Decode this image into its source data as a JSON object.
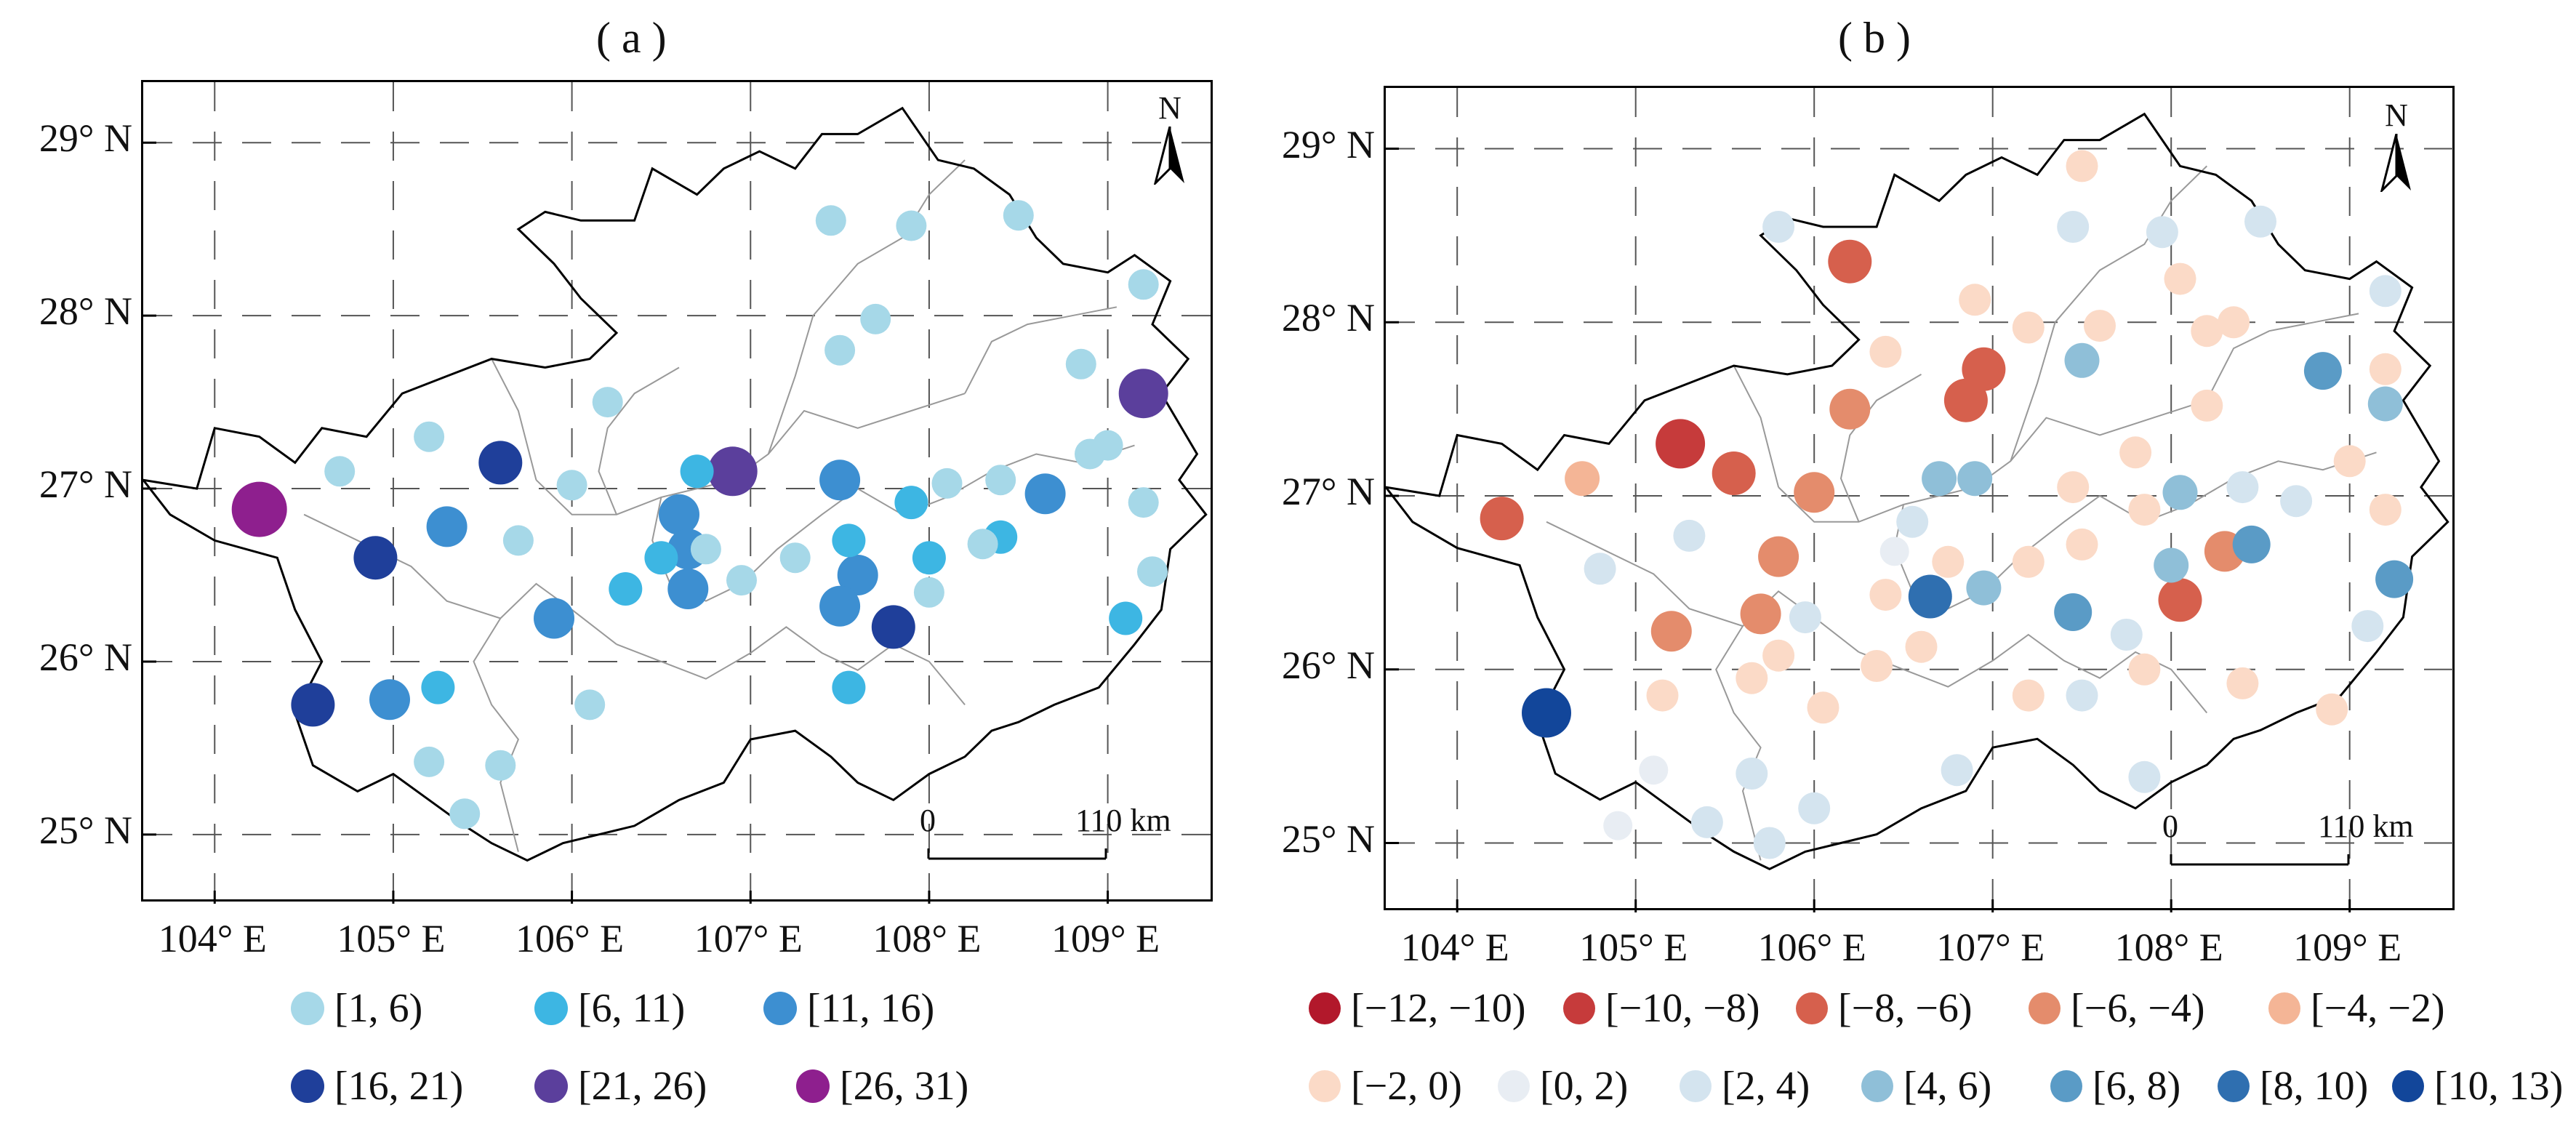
{
  "panel_a": {
    "title": "( a )",
    "north_label": "N",
    "scale_zero": "0",
    "scale_label": "110 km",
    "lat_labels": [
      "29° N",
      "28° N",
      "27° N",
      "26° N",
      "25° N"
    ],
    "lon_labels": [
      "104° E",
      "105° E",
      "106° E",
      "107° E",
      "108° E",
      "109° E"
    ],
    "legend": [
      {
        "label": "[1, 6)",
        "color": "#a6d8e8"
      },
      {
        "label": "[6, 11)",
        "color": "#3db6e3"
      },
      {
        "label": "[11, 16)",
        "color": "#3d8fd1"
      },
      {
        "label": "[16, 21)",
        "color": "#1f3f9a"
      },
      {
        "label": "[21, 26)",
        "color": "#5b3f9c"
      },
      {
        "label": "[26, 31)",
        "color": "#8e1f8e"
      }
    ]
  },
  "panel_b": {
    "title": "( b )",
    "north_label": "N",
    "scale_zero": "0",
    "scale_label": "110 km",
    "lat_labels": [
      "29° N",
      "28° N",
      "27° N",
      "26° N",
      "25° N"
    ],
    "lon_labels": [
      "104° E",
      "105° E",
      "106° E",
      "107° E",
      "108° E",
      "109° E"
    ],
    "legend": [
      {
        "label": "[−12, −10)",
        "color": "#b2182b"
      },
      {
        "label": "[−10, −8)",
        "color": "#c63b3b"
      },
      {
        "label": "[−8, −6)",
        "color": "#d6604d"
      },
      {
        "label": "[−6, −4)",
        "color": "#e48c6c"
      },
      {
        "label": "[−4, −2)",
        "color": "#f4b596"
      },
      {
        "label": "[−2, 0)",
        "color": "#fbdac7"
      },
      {
        "label": "[0, 2)",
        "color": "#e8edf3"
      },
      {
        "label": "[2, 4)",
        "color": "#d4e4ef"
      },
      {
        "label": "[4, 6)",
        "color": "#8fbfd8"
      },
      {
        "label": "[6, 8)",
        "color": "#5a9bc6"
      },
      {
        "label": "[8, 10)",
        "color": "#2f6fb0"
      },
      {
        "label": "[10, 13)",
        "color": "#12469a"
      }
    ]
  },
  "stations_a": [
    {
      "lon": 104.25,
      "lat": 26.88,
      "c": 5
    },
    {
      "lon": 104.55,
      "lat": 25.75,
      "c": 3
    },
    {
      "lon": 104.9,
      "lat": 26.6,
      "c": 3
    },
    {
      "lon": 104.98,
      "lat": 25.78,
      "c": 2
    },
    {
      "lon": 105.6,
      "lat": 27.15,
      "c": 3
    },
    {
      "lon": 105.3,
      "lat": 26.78,
      "c": 2
    },
    {
      "lon": 105.9,
      "lat": 26.25,
      "c": 2
    },
    {
      "lon": 106.6,
      "lat": 26.85,
      "c": 2
    },
    {
      "lon": 106.65,
      "lat": 26.65,
      "c": 2
    },
    {
      "lon": 106.65,
      "lat": 26.42,
      "c": 2
    },
    {
      "lon": 106.9,
      "lat": 27.1,
      "c": 4
    },
    {
      "lon": 107.5,
      "lat": 27.05,
      "c": 2
    },
    {
      "lon": 107.6,
      "lat": 26.5,
      "c": 2
    },
    {
      "lon": 107.5,
      "lat": 26.32,
      "c": 2
    },
    {
      "lon": 107.8,
      "lat": 26.2,
      "c": 3
    },
    {
      "lon": 108.65,
      "lat": 26.97,
      "c": 2
    },
    {
      "lon": 109.2,
      "lat": 27.55,
      "c": 4
    },
    {
      "lon": 105.25,
      "lat": 25.85,
      "c": 1
    },
    {
      "lon": 106.3,
      "lat": 26.42,
      "c": 1
    },
    {
      "lon": 106.5,
      "lat": 26.6,
      "c": 1
    },
    {
      "lon": 106.7,
      "lat": 27.1,
      "c": 1
    },
    {
      "lon": 107.55,
      "lat": 26.7,
      "c": 1
    },
    {
      "lon": 107.55,
      "lat": 25.85,
      "c": 1
    },
    {
      "lon": 107.9,
      "lat": 26.92,
      "c": 1
    },
    {
      "lon": 108.0,
      "lat": 26.6,
      "c": 1
    },
    {
      "lon": 108.4,
      "lat": 26.72,
      "c": 1
    },
    {
      "lon": 109.1,
      "lat": 26.25,
      "c": 1
    },
    {
      "lon": 104.7,
      "lat": 27.1,
      "c": 0
    },
    {
      "lon": 105.2,
      "lat": 27.3,
      "c": 0
    },
    {
      "lon": 105.2,
      "lat": 25.42,
      "c": 0
    },
    {
      "lon": 105.4,
      "lat": 25.12,
      "c": 0
    },
    {
      "lon": 105.6,
      "lat": 25.4,
      "c": 0
    },
    {
      "lon": 105.7,
      "lat": 26.7,
      "c": 0
    },
    {
      "lon": 106.0,
      "lat": 27.02,
      "c": 0
    },
    {
      "lon": 106.1,
      "lat": 25.75,
      "c": 0
    },
    {
      "lon": 106.2,
      "lat": 27.5,
      "c": 0
    },
    {
      "lon": 106.75,
      "lat": 26.65,
      "c": 0
    },
    {
      "lon": 106.95,
      "lat": 26.47,
      "c": 0
    },
    {
      "lon": 107.25,
      "lat": 26.6,
      "c": 0
    },
    {
      "lon": 107.45,
      "lat": 28.55,
      "c": 0
    },
    {
      "lon": 107.7,
      "lat": 27.98,
      "c": 0
    },
    {
      "lon": 107.5,
      "lat": 27.8,
      "c": 0
    },
    {
      "lon": 107.9,
      "lat": 28.52,
      "c": 0
    },
    {
      "lon": 108.1,
      "lat": 27.03,
      "c": 0
    },
    {
      "lon": 108.0,
      "lat": 26.4,
      "c": 0
    },
    {
      "lon": 108.3,
      "lat": 26.68,
      "c": 0
    },
    {
      "lon": 108.4,
      "lat": 27.05,
      "c": 0
    },
    {
      "lon": 108.5,
      "lat": 28.58,
      "c": 0
    },
    {
      "lon": 108.85,
      "lat": 27.72,
      "c": 0
    },
    {
      "lon": 108.9,
      "lat": 27.2,
      "c": 0
    },
    {
      "lon": 109.0,
      "lat": 27.25,
      "c": 0
    },
    {
      "lon": 109.2,
      "lat": 28.18,
      "c": 0
    },
    {
      "lon": 109.2,
      "lat": 26.92,
      "c": 0
    },
    {
      "lon": 109.25,
      "lat": 26.52,
      "c": 0
    }
  ],
  "stations_b": [
    {
      "lon": 105.25,
      "lat": 27.3,
      "c": 1
    },
    {
      "lon": 104.5,
      "lat": 25.75,
      "c": 11
    },
    {
      "lon": 106.2,
      "lat": 28.35,
      "c": 2
    },
    {
      "lon": 104.25,
      "lat": 26.87,
      "c": 2
    },
    {
      "lon": 105.55,
      "lat": 27.13,
      "c": 2
    },
    {
      "lon": 106.95,
      "lat": 27.73,
      "c": 2
    },
    {
      "lon": 106.85,
      "lat": 27.55,
      "c": 2
    },
    {
      "lon": 108.05,
      "lat": 26.4,
      "c": 2
    },
    {
      "lon": 106.0,
      "lat": 27.02,
      "c": 3
    },
    {
      "lon": 106.2,
      "lat": 27.5,
      "c": 3
    },
    {
      "lon": 105.8,
      "lat": 26.65,
      "c": 3
    },
    {
      "lon": 105.7,
      "lat": 26.32,
      "c": 3
    },
    {
      "lon": 105.2,
      "lat": 26.22,
      "c": 3
    },
    {
      "lon": 108.3,
      "lat": 26.68,
      "c": 3
    },
    {
      "lon": 104.7,
      "lat": 27.1,
      "c": 4
    },
    {
      "lon": 106.65,
      "lat": 26.42,
      "c": 10
    },
    {
      "lon": 108.45,
      "lat": 26.72,
      "c": 9
    },
    {
      "lon": 107.45,
      "lat": 26.33,
      "c": 9
    },
    {
      "lon": 107.5,
      "lat": 28.9,
      "c": 5
    },
    {
      "lon": 106.4,
      "lat": 27.83,
      "c": 5
    },
    {
      "lon": 106.9,
      "lat": 28.13,
      "c": 5
    },
    {
      "lon": 107.2,
      "lat": 27.97,
      "c": 5
    },
    {
      "lon": 107.6,
      "lat": 27.98,
      "c": 5
    },
    {
      "lon": 108.05,
      "lat": 28.25,
      "c": 5
    },
    {
      "lon": 108.2,
      "lat": 27.95,
      "c": 5
    },
    {
      "lon": 108.35,
      "lat": 28.0,
      "c": 5
    },
    {
      "lon": 108.2,
      "lat": 27.52,
      "c": 5
    },
    {
      "lon": 109.2,
      "lat": 27.73,
      "c": 5
    },
    {
      "lon": 107.8,
      "lat": 27.25,
      "c": 5
    },
    {
      "lon": 107.45,
      "lat": 27.05,
      "c": 5
    },
    {
      "lon": 107.5,
      "lat": 26.72,
      "c": 5
    },
    {
      "lon": 107.85,
      "lat": 26.92,
      "c": 5
    },
    {
      "lon": 109.0,
      "lat": 27.2,
      "c": 5
    },
    {
      "lon": 109.2,
      "lat": 26.92,
      "c": 5
    },
    {
      "lon": 106.75,
      "lat": 26.62,
      "c": 5
    },
    {
      "lon": 107.2,
      "lat": 26.62,
      "c": 5
    },
    {
      "lon": 106.6,
      "lat": 26.13,
      "c": 5
    },
    {
      "lon": 106.4,
      "lat": 26.43,
      "c": 5
    },
    {
      "lon": 105.8,
      "lat": 26.08,
      "c": 5
    },
    {
      "lon": 105.65,
      "lat": 25.95,
      "c": 5
    },
    {
      "lon": 105.15,
      "lat": 25.85,
      "c": 5
    },
    {
      "lon": 106.05,
      "lat": 25.78,
      "c": 5
    },
    {
      "lon": 106.35,
      "lat": 26.02,
      "c": 5
    },
    {
      "lon": 107.2,
      "lat": 25.85,
      "c": 5
    },
    {
      "lon": 107.85,
      "lat": 26.0,
      "c": 5
    },
    {
      "lon": 108.4,
      "lat": 25.92,
      "c": 5
    },
    {
      "lon": 108.9,
      "lat": 25.77,
      "c": 5
    },
    {
      "lon": 105.1,
      "lat": 25.42,
      "c": 6
    },
    {
      "lon": 104.9,
      "lat": 25.1,
      "c": 6
    },
    {
      "lon": 106.45,
      "lat": 26.68,
      "c": 6
    },
    {
      "lon": 104.8,
      "lat": 26.58,
      "c": 7
    },
    {
      "lon": 105.3,
      "lat": 26.77,
      "c": 7
    },
    {
      "lon": 105.95,
      "lat": 26.3,
      "c": 7
    },
    {
      "lon": 105.4,
      "lat": 25.12,
      "c": 7
    },
    {
      "lon": 105.65,
      "lat": 25.4,
      "c": 7
    },
    {
      "lon": 106.0,
      "lat": 25.2,
      "c": 7
    },
    {
      "lon": 105.75,
      "lat": 25.0,
      "c": 7
    },
    {
      "lon": 106.55,
      "lat": 26.85,
      "c": 7
    },
    {
      "lon": 106.8,
      "lat": 25.42,
      "c": 7
    },
    {
      "lon": 107.5,
      "lat": 25.85,
      "c": 7
    },
    {
      "lon": 107.75,
      "lat": 26.2,
      "c": 7
    },
    {
      "lon": 107.85,
      "lat": 25.38,
      "c": 7
    },
    {
      "lon": 108.4,
      "lat": 27.05,
      "c": 7
    },
    {
      "lon": 108.7,
      "lat": 26.97,
      "c": 7
    },
    {
      "lon": 109.1,
      "lat": 26.25,
      "c": 7
    },
    {
      "lon": 109.2,
      "lat": 28.18,
      "c": 7
    },
    {
      "lon": 107.45,
      "lat": 28.55,
      "c": 7
    },
    {
      "lon": 105.8,
      "lat": 28.55,
      "c": 7
    },
    {
      "lon": 107.95,
      "lat": 28.52,
      "c": 7
    },
    {
      "lon": 108.5,
      "lat": 28.58,
      "c": 7
    },
    {
      "lon": 106.7,
      "lat": 27.1,
      "c": 8
    },
    {
      "lon": 106.9,
      "lat": 27.1,
      "c": 8
    },
    {
      "lon": 107.5,
      "lat": 27.78,
      "c": 8
    },
    {
      "lon": 108.0,
      "lat": 26.6,
      "c": 8
    },
    {
      "lon": 108.05,
      "lat": 27.02,
      "c": 8
    },
    {
      "lon": 106.95,
      "lat": 26.47,
      "c": 8
    },
    {
      "lon": 108.85,
      "lat": 27.72,
      "c": 9
    },
    {
      "lon": 109.25,
      "lat": 26.52,
      "c": 9
    },
    {
      "lon": 109.2,
      "lat": 27.53,
      "c": 8
    }
  ]
}
